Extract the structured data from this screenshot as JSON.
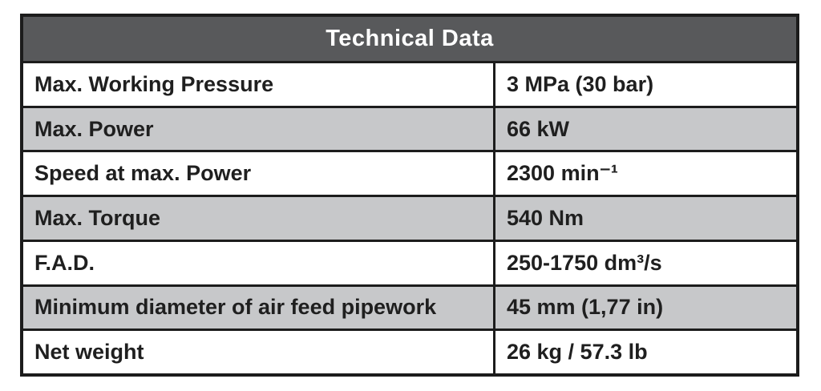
{
  "table": {
    "title": "Technical Data",
    "rows": [
      {
        "label": "Max. Working Pressure",
        "value": "3 MPa (30 bar)"
      },
      {
        "label": "Max. Power",
        "value": "66 kW"
      },
      {
        "label": "Speed at max. Power",
        "value": "2300 min⁻¹"
      },
      {
        "label": "Max. Torque",
        "value": "540 Nm"
      },
      {
        "label": "F.A.D.",
        "value": "250-1750 dm³/s"
      },
      {
        "label": "Minimum diameter of air feed pipework",
        "value": "45 mm (1,77 in)"
      },
      {
        "label": "Net weight",
        "value": "26 kg / 57.3 lb"
      }
    ],
    "colors": {
      "header_bg": "#58595b",
      "header_text": "#ffffff",
      "row_bg": "#ffffff",
      "row_alt_bg": "#c7c8ca",
      "border": "#1c1c1c",
      "text": "#1f1f1f"
    }
  }
}
